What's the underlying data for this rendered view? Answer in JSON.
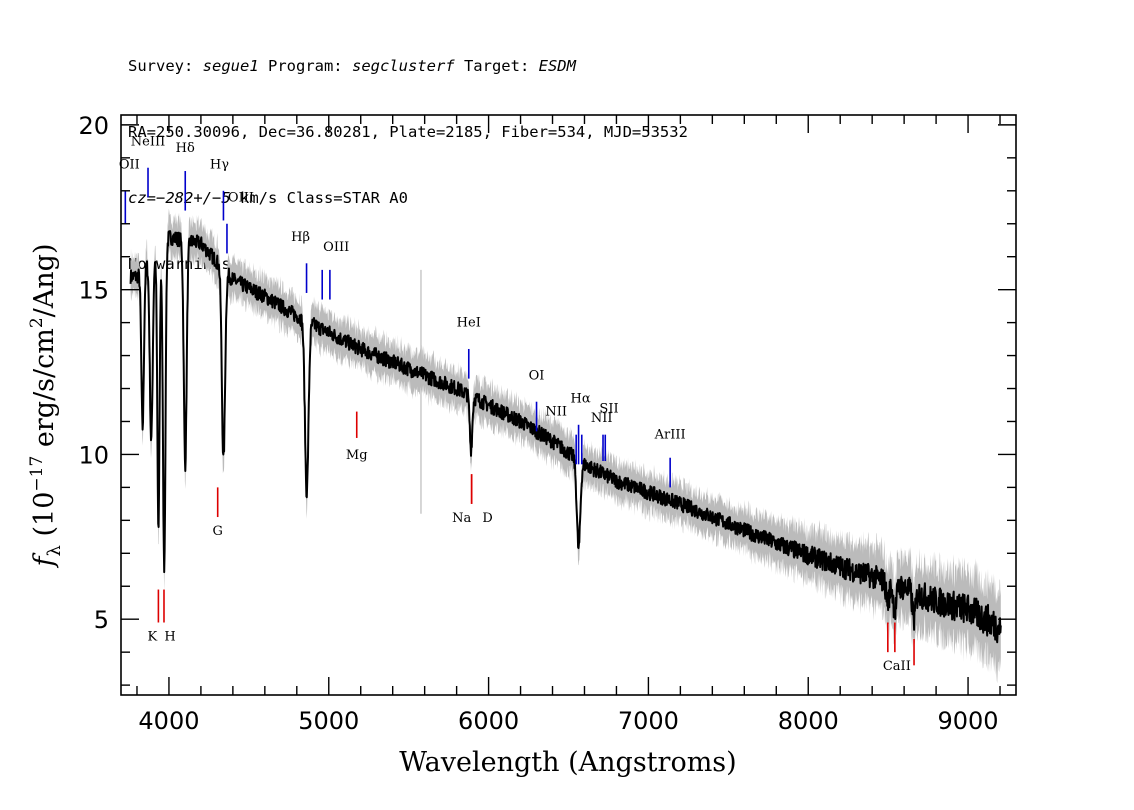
{
  "header": {
    "line1": {
      "survey_label": "Survey: ",
      "survey": "segue1",
      "program_label": " Program: ",
      "program": "segclusterf",
      "target_label": " Target: ",
      "target": "ESDM"
    },
    "line2": "RA=250.30096, Dec=36.80281, Plate=2185, Fiber=534, MJD=53532",
    "line3": {
      "cz_label": "cz=",
      "cz": "−282+/−5",
      "rest": " km/s Class=STAR A0"
    },
    "line4": "No warnings."
  },
  "chart_data": {
    "type": "line",
    "xlabel": "Wavelength (Angstroms)",
    "ylabel_parts": {
      "f": "f",
      "sub": "λ",
      "pre": " (10",
      "exp": "−17",
      "mid": " erg/s/cm",
      "exp2": "2",
      "post": "/Ang)"
    },
    "xlim": [
      3700,
      9300
    ],
    "ylim": [
      2.7,
      20.3
    ],
    "xticks": [
      4000,
      5000,
      6000,
      7000,
      8000,
      9000
    ],
    "yticks": [
      5,
      10,
      15,
      20
    ],
    "x_minor_step": 200,
    "y_minor_step": 1,
    "grid": false,
    "colors": {
      "flux": "#000000",
      "error_band": "#bbbbbb",
      "emission_lines": "#0000cc",
      "absorption_lines": "#dd0000"
    },
    "continuum": {
      "x": [
        3800,
        4000,
        4200,
        4400,
        4600,
        4800,
        5000,
        5200,
        5400,
        5600,
        5800,
        6000,
        6200,
        6400,
        6600,
        6800,
        7000,
        7200,
        7400,
        7600,
        7800,
        8000,
        8200,
        8400,
        8600,
        8800,
        9000,
        9200
      ],
      "y": [
        15.4,
        16.6,
        16.4,
        15.3,
        14.8,
        14.2,
        13.7,
        13.2,
        12.8,
        12.4,
        12.0,
        11.5,
        11.0,
        10.4,
        9.7,
        9.2,
        8.85,
        8.5,
        8.1,
        7.7,
        7.3,
        6.95,
        6.6,
        6.3,
        5.95,
        5.55,
        5.3,
        4.75
      ]
    },
    "absorption_features": [
      {
        "center": 3835,
        "depth": 4.8,
        "width": 8
      },
      {
        "center": 3889,
        "depth": 5.5,
        "width": 9
      },
      {
        "center": 3934,
        "depth": 8.5,
        "width": 7
      },
      {
        "center": 3970,
        "depth": 9.8,
        "width": 8
      },
      {
        "center": 4102,
        "depth": 6.8,
        "width": 9
      },
      {
        "center": 4341,
        "depth": 5.8,
        "width": 10
      },
      {
        "center": 4862,
        "depth": 5.2,
        "width": 11
      },
      {
        "center": 5890,
        "depth": 1.6,
        "width": 8
      },
      {
        "center": 6563,
        "depth": 2.7,
        "width": 11
      },
      {
        "center": 8498,
        "depth": 0.6,
        "width": 10
      },
      {
        "center": 8542,
        "depth": 0.8,
        "width": 10
      },
      {
        "center": 8662,
        "depth": 0.8,
        "width": 10
      }
    ],
    "spikes": [
      {
        "x": 5577,
        "y0": 8.2,
        "y1": 15.6
      }
    ],
    "emission_lines": [
      {
        "label": "OII",
        "x": 3727,
        "y_top": 18.0,
        "y_bottom": 17.0,
        "label_y": 18.8
      },
      {
        "label": "NeIII",
        "x": 3869,
        "y_top": 18.7,
        "y_bottom": 17.8,
        "label_y": 19.5
      },
      {
        "label": "Hδ",
        "x": 4102,
        "y_top": 18.6,
        "y_bottom": 17.4,
        "label_y": 19.3
      },
      {
        "label": "Hγ",
        "x": 4341,
        "y_top": 18.0,
        "y_bottom": 17.1,
        "label_y": 18.8
      },
      {
        "label": "OIII",
        "x": 4363,
        "y_top": 17.0,
        "y_bottom": 16.1,
        "label_y": 17.8
      },
      {
        "label": "Hβ",
        "x": 4861,
        "y_top": 15.8,
        "y_bottom": 14.9,
        "label_y": 16.6
      },
      {
        "label": "OIII",
        "x": 4959,
        "y_top": 15.6,
        "y_bottom": 14.7,
        "label_y": 16.3
      },
      {
        "label": "OIII",
        "x": 5007,
        "y_top": 15.6,
        "y_bottom": 14.7,
        "label_y": 16.3
      },
      {
        "label": "HeI",
        "x": 5876,
        "y_top": 13.2,
        "y_bottom": 12.3,
        "label_y": 14.0
      },
      {
        "label": "OI",
        "x": 6300,
        "y_top": 11.6,
        "y_bottom": 10.7,
        "label_y": 12.4
      },
      {
        "label": "NII",
        "x": 6548,
        "y_top": 10.6,
        "y_bottom": 9.7,
        "label_y": 11.3
      },
      {
        "label": "Hα",
        "x": 6563,
        "y_top": 10.9,
        "y_bottom": 9.7,
        "label_y": 11.7
      },
      {
        "label": "NII",
        "x": 6583,
        "y_top": 10.6,
        "y_bottom": 9.7,
        "label_y": 11.1
      },
      {
        "label": "SII",
        "x": 6716,
        "y_top": 10.6,
        "y_bottom": 9.8,
        "label_y": 11.4
      },
      {
        "label": "SII",
        "x": 6730,
        "y_top": 10.6,
        "y_bottom": 9.8,
        "label_y": 11.4
      },
      {
        "label": "ArIII",
        "x": 7136,
        "y_top": 9.9,
        "y_bottom": 9.0,
        "label_y": 10.6
      }
    ],
    "absorption_lines": [
      {
        "label": "K",
        "x": 3934,
        "y_top": 5.9,
        "y_bottom": 4.9,
        "label_y": 4.6
      },
      {
        "label": "H",
        "x": 3969,
        "y_top": 5.9,
        "y_bottom": 4.9,
        "label_y": 4.6
      },
      {
        "label": "G",
        "x": 4305,
        "y_top": 9.0,
        "y_bottom": 8.1,
        "label_y": 7.8
      },
      {
        "label": "Mg",
        "x": 5175,
        "y_top": 11.3,
        "y_bottom": 10.5,
        "label_y": 10.1
      },
      {
        "label": "Na",
        "x": 5894,
        "y_top": 9.4,
        "y_bottom": 8.5,
        "label_y": 8.2
      },
      {
        "label": "D",
        "x": 5894,
        "y_top": 9.4,
        "y_bottom": 8.5,
        "label_y": 8.2
      },
      {
        "label": "CaII",
        "x": 8498,
        "y_top": 4.9,
        "y_bottom": 4.0,
        "label_y": 3.7
      },
      {
        "label": "CaII",
        "x": 8542,
        "y_top": 4.9,
        "y_bottom": 4.0,
        "label_y": 3.7
      },
      {
        "label": "CaII",
        "x": 8662,
        "y_top": 4.4,
        "y_bottom": 3.6,
        "label_y": 3.7
      }
    ]
  }
}
